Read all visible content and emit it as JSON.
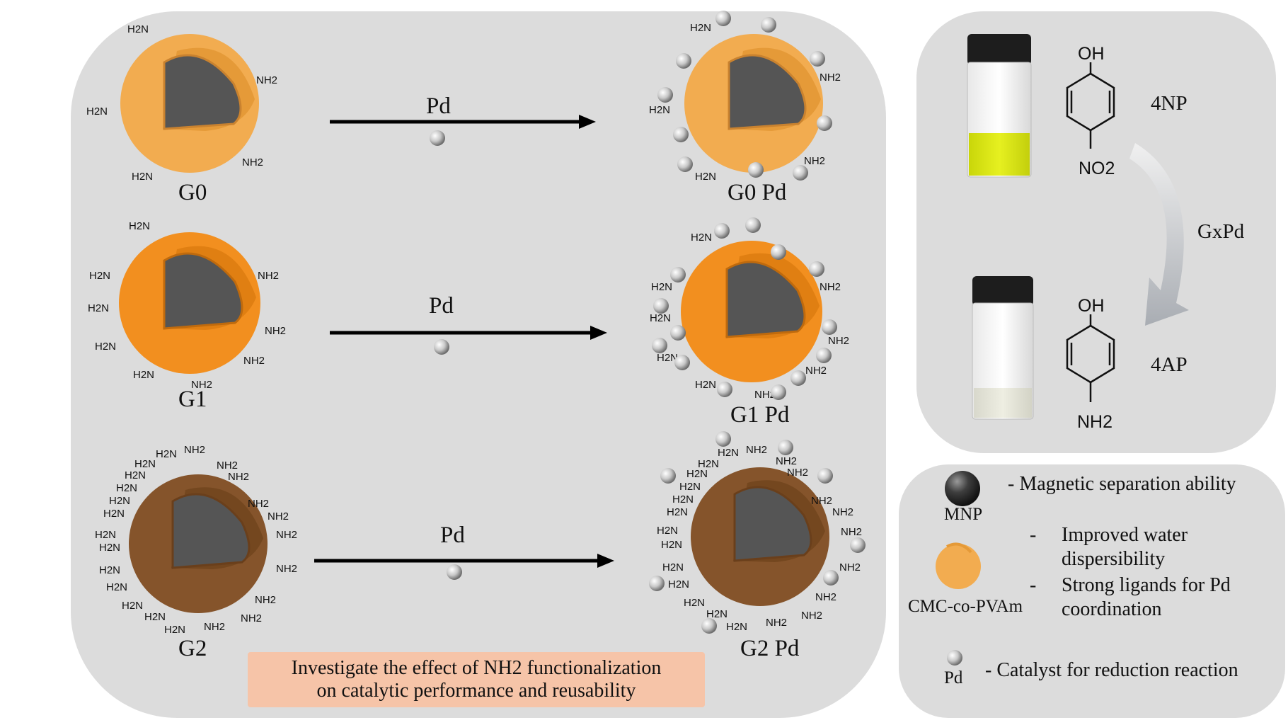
{
  "stages": [
    {
      "label": "G0",
      "product": "G0 Pd",
      "reagent": "Pd"
    },
    {
      "label": "G1",
      "product": "G1 Pd",
      "reagent": "Pd"
    },
    {
      "label": "G2",
      "product": "G2 Pd",
      "reagent": "Pd"
    }
  ],
  "amine": {
    "h2n": "H2N",
    "nh2": "NH2"
  },
  "reaction": {
    "reactant_label": "4NP",
    "product_label": "4AP",
    "catalyst_label": "GxPd",
    "hydroxyl": "OH",
    "nitro": "NO2",
    "amino": "NH2"
  },
  "legend": {
    "mnp_label": "MNP",
    "mnp_desc": "- Magnetic separation ability",
    "polymer_label": "CMC-co-PVAm",
    "polymer_desc1_line1": "Improved water",
    "polymer_desc1_line2": "dispersibility",
    "polymer_desc2_line1": "Strong ligands for Pd",
    "polymer_desc2_line2": "coordination",
    "pd_label": "Pd",
    "pd_desc": "- Catalyst for reduction reaction"
  },
  "objective": {
    "line1": "Investigate the effect of NH2 functionalization",
    "line2": "on catalytic performance and reusability"
  },
  "colors": {
    "panel": "#dcdcdc",
    "core": "#555555",
    "shell_g0": "#f2ac50",
    "shell_g1": "#f28f1f",
    "shell_g2": "#85542b",
    "objective_box": "#f6c4a8",
    "vial_yellow": "#d9e61a"
  }
}
